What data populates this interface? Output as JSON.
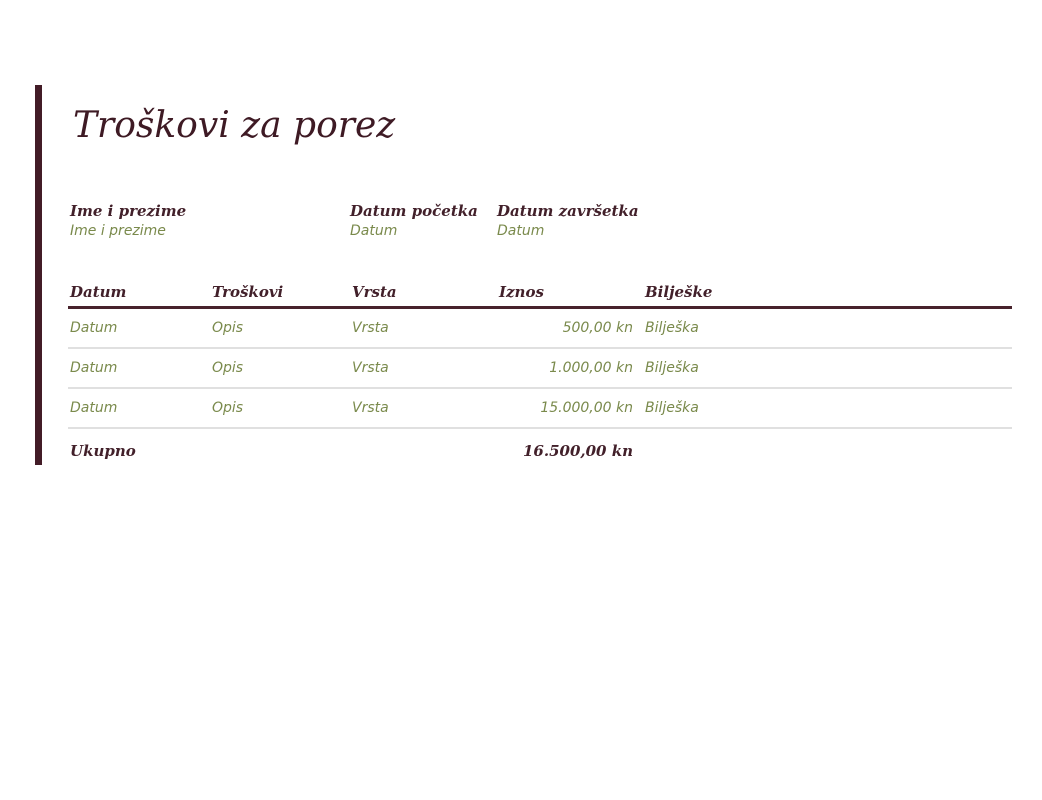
{
  "title": "Troškovi za porez",
  "colors": {
    "accent_maroon": "#431c27",
    "label_maroon": "#42202a",
    "value_green": "#7a8a4c",
    "divider_gray": "#e0e0e0"
  },
  "fields": {
    "name": {
      "label": "Ime i prezime",
      "value": "Ime i prezime"
    },
    "start": {
      "label": "Datum početka",
      "value": "Datum"
    },
    "end": {
      "label": "Datum završetka",
      "value": "Datum"
    }
  },
  "table": {
    "headers": [
      "Datum",
      "Troškovi",
      "Vrsta",
      "Iznos",
      "Bilješke"
    ],
    "rows": [
      [
        "Datum",
        "Opis",
        "Vrsta",
        "500,00 kn",
        "Bilješka"
      ],
      [
        "Datum",
        "Opis",
        "Vrsta",
        "1.000,00 kn",
        "Bilješka"
      ],
      [
        "Datum",
        "Opis",
        "Vrsta",
        "15.000,00 kn",
        "Bilješka"
      ]
    ],
    "total": {
      "label": "Ukupno",
      "amount": "16.500,00 kn"
    }
  }
}
